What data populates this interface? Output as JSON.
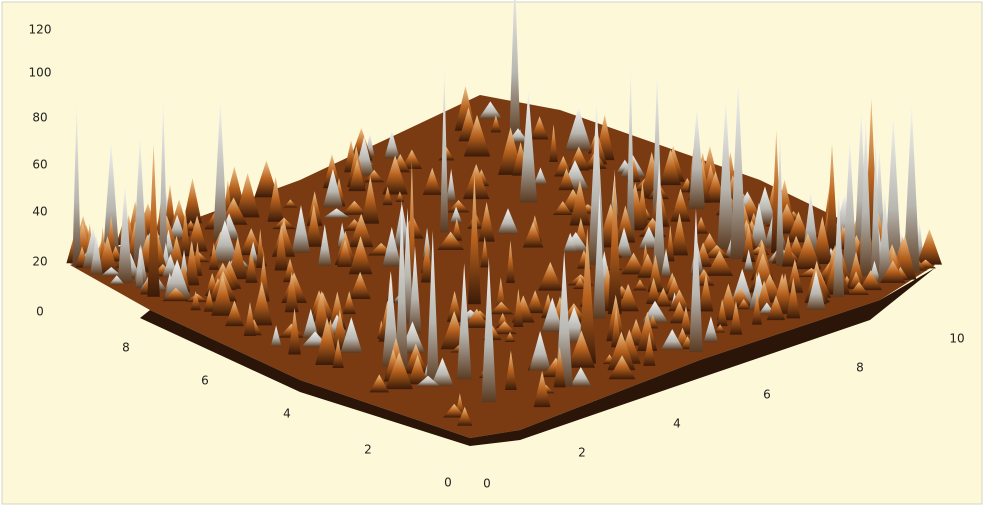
{
  "z_axis": {
    "labels": [
      "120",
      "100",
      "80",
      "60",
      "40",
      "20",
      "0"
    ]
  },
  "left_axis": {
    "labels": [
      "8",
      "6",
      "4",
      "2",
      "0"
    ]
  },
  "right_axis": {
    "labels": [
      "0",
      "2",
      "4",
      "6",
      "8",
      "10"
    ]
  }
}
